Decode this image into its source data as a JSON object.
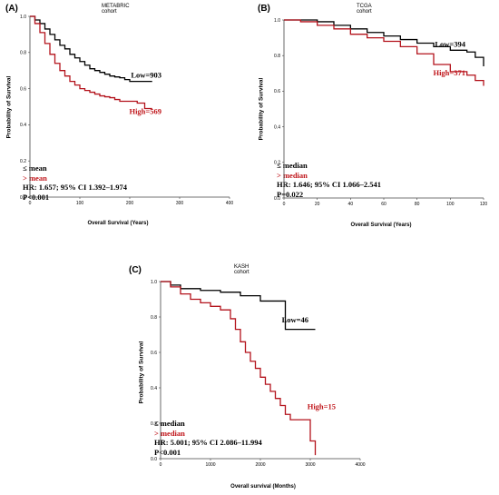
{
  "colors": {
    "low": "#000000",
    "high": "#b3121b",
    "text_red": "#c0161b"
  },
  "panels": [
    {
      "label": "(A)",
      "title": "METABRIC cohort",
      "stats": [
        "≤ mean",
        "> mean",
        "HR: 1.657; 95% CI 1.392–1.974",
        "P<0.001"
      ],
      "xlabel": "Overall Survival (Years)",
      "ylabel": "Probability of Survival"
    },
    {
      "label": "(B)",
      "title": "TCGA cohort",
      "stats": [
        "≤ median",
        "> median",
        "HR: 1.646; 95% CI 1.066–2.541",
        "P=0.022"
      ],
      "xlabel": "Overall Survival (Years)",
      "ylabel": "Probability of Survival"
    },
    {
      "label": "(C)",
      "title": "KASH cohort",
      "stats": [
        "≤ median",
        "> median",
        "HR: 5.001; 95% CI 2.086–11.994",
        "P<0.001"
      ],
      "xlabel": "Overall survival (Months)",
      "ylabel": "Probability of Survival"
    }
  ],
  "chart_data": [
    {
      "type": "line",
      "title": "METABRIC cohort",
      "xlabel": "Overall Survival (Years)",
      "ylabel": "Probability of Survival",
      "xlim": [
        0,
        400
      ],
      "ylim": [
        0,
        1.0
      ],
      "xticks": [
        "0",
        "100",
        "200",
        "300",
        "400"
      ],
      "yticks": [
        "0.0",
        "0.2",
        "0.4",
        "0.6",
        "0.8",
        "1.0"
      ],
      "series": [
        {
          "name": "Low=903",
          "x": [
            0,
            10,
            20,
            30,
            40,
            50,
            60,
            70,
            80,
            90,
            100,
            110,
            120,
            130,
            140,
            150,
            160,
            170,
            180,
            190,
            200,
            215,
            230,
            245
          ],
          "y": [
            1.0,
            0.98,
            0.96,
            0.93,
            0.9,
            0.87,
            0.84,
            0.82,
            0.79,
            0.77,
            0.75,
            0.73,
            0.71,
            0.7,
            0.69,
            0.68,
            0.67,
            0.665,
            0.66,
            0.65,
            0.64,
            0.64,
            0.64,
            0.64
          ]
        },
        {
          "name": "High=569",
          "x": [
            0,
            10,
            20,
            30,
            40,
            50,
            60,
            70,
            80,
            90,
            100,
            110,
            120,
            130,
            140,
            150,
            160,
            170,
            180,
            190,
            200,
            215,
            230,
            245
          ],
          "y": [
            1.0,
            0.96,
            0.91,
            0.85,
            0.79,
            0.74,
            0.7,
            0.67,
            0.64,
            0.62,
            0.6,
            0.59,
            0.58,
            0.57,
            0.56,
            0.555,
            0.55,
            0.54,
            0.53,
            0.53,
            0.53,
            0.52,
            0.49,
            0.49
          ]
        }
      ]
    },
    {
      "type": "line",
      "title": "TCGA cohort",
      "xlabel": "Overall Survival (Years)",
      "ylabel": "Probability of Survival",
      "xlim": [
        0,
        120
      ],
      "ylim": [
        0,
        1.0
      ],
      "xticks": [
        "0",
        "20",
        "40",
        "60",
        "80",
        "100",
        "120"
      ],
      "yticks": [
        "0.0",
        "0.2",
        "0.4",
        "0.6",
        "0.8",
        "1.0"
      ],
      "series": [
        {
          "name": "Low=394",
          "x": [
            0,
            10,
            20,
            30,
            40,
            50,
            60,
            70,
            80,
            90,
            100,
            110,
            115,
            120
          ],
          "y": [
            1.0,
            1.0,
            0.99,
            0.97,
            0.95,
            0.93,
            0.91,
            0.89,
            0.87,
            0.85,
            0.83,
            0.82,
            0.79,
            0.74
          ]
        },
        {
          "name": "High=371",
          "x": [
            0,
            10,
            20,
            30,
            40,
            50,
            60,
            70,
            80,
            90,
            100,
            110,
            115,
            120
          ],
          "y": [
            1.0,
            0.99,
            0.97,
            0.95,
            0.92,
            0.9,
            0.88,
            0.85,
            0.81,
            0.75,
            0.71,
            0.69,
            0.66,
            0.63
          ]
        }
      ]
    },
    {
      "type": "line",
      "title": "KASH cohort",
      "xlabel": "Overall survival (Months)",
      "ylabel": "Probability of Survival",
      "xlim": [
        0,
        4000
      ],
      "ylim": [
        0,
        1.0
      ],
      "xticks": [
        "0",
        "1000",
        "2000",
        "3000",
        "4000"
      ],
      "yticks": [
        "0.0",
        "0.2",
        "0.4",
        "0.6",
        "0.8",
        "1.0"
      ],
      "series": [
        {
          "name": "Low=46",
          "x": [
            0,
            200,
            400,
            800,
            1200,
            1600,
            2000,
            2400,
            2500,
            2600,
            3100
          ],
          "y": [
            1.0,
            0.98,
            0.96,
            0.95,
            0.94,
            0.92,
            0.89,
            0.89,
            0.73,
            0.73,
            0.73
          ]
        },
        {
          "name": "High=15",
          "x": [
            0,
            200,
            400,
            600,
            800,
            1000,
            1200,
            1400,
            1500,
            1600,
            1700,
            1800,
            1900,
            2000,
            2100,
            2200,
            2300,
            2400,
            2500,
            2600,
            2800,
            3000,
            3100
          ],
          "y": [
            1.0,
            0.97,
            0.93,
            0.9,
            0.88,
            0.86,
            0.84,
            0.79,
            0.73,
            0.66,
            0.6,
            0.55,
            0.51,
            0.46,
            0.42,
            0.38,
            0.34,
            0.3,
            0.25,
            0.22,
            0.22,
            0.1,
            0.02
          ]
        }
      ]
    }
  ]
}
